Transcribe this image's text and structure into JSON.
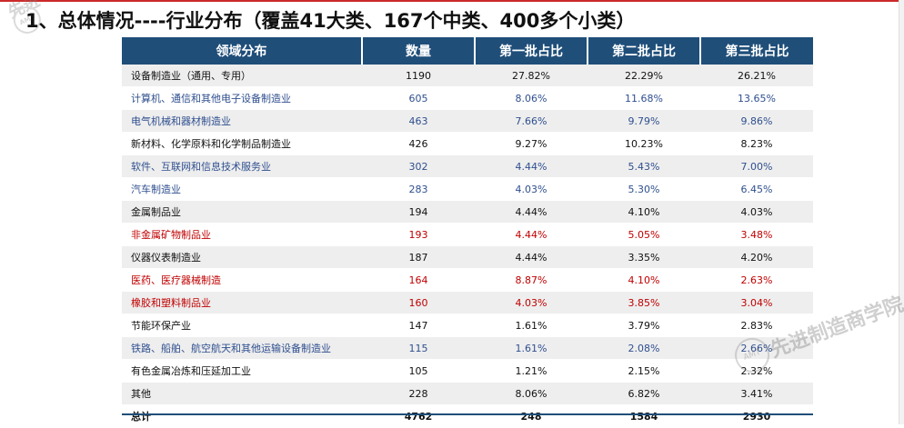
{
  "title": "1、总体情况----行业分布（覆盖41大类、167个中类、400多个小类）",
  "logo": {
    "text": "先进",
    "seal_text": "AMT",
    "color": "#888888"
  },
  "watermark": {
    "text": "先进制造商学院",
    "seal_text": "AMT"
  },
  "colors": {
    "header_bg": "#1f4e79",
    "header_text": "#ffffff",
    "row_shade": "#eeeeee",
    "blue_text": "#2f4f8f",
    "red_text": "#c00000"
  },
  "table": {
    "headers": [
      "领域分布",
      "数量",
      "第一批占比",
      "第二批占比",
      "第三批占比"
    ],
    "rows": [
      {
        "name": "设备制造业（通用、专用）",
        "count": "1190",
        "b1": "27.82%",
        "b2": "22.29%",
        "b3": "26.21%",
        "tone": "black"
      },
      {
        "name": "计算机、通信和其他电子设备制造业",
        "count": "605",
        "b1": "8.06%",
        "b2": "11.68%",
        "b3": "13.65%",
        "tone": "blue"
      },
      {
        "name": "电气机械和器材制造业",
        "count": "463",
        "b1": "7.66%",
        "b2": "9.79%",
        "b3": "9.86%",
        "tone": "blue"
      },
      {
        "name": "新材料、化学原料和化学制品制造业",
        "count": "426",
        "b1": "9.27%",
        "b2": "10.23%",
        "b3": "8.23%",
        "tone": "black"
      },
      {
        "name": "软件、互联网和信息技术服务业",
        "count": "302",
        "b1": "4.44%",
        "b2": "5.43%",
        "b3": "7.00%",
        "tone": "blue"
      },
      {
        "name": "汽车制造业",
        "count": "283",
        "b1": "4.03%",
        "b2": "5.30%",
        "b3": "6.45%",
        "tone": "blue"
      },
      {
        "name": "金属制品业",
        "count": "194",
        "b1": "4.44%",
        "b2": "4.10%",
        "b3": "4.03%",
        "tone": "black"
      },
      {
        "name": "非金属矿物制品业",
        "count": "193",
        "b1": "4.44%",
        "b2": "5.05%",
        "b3": "3.48%",
        "tone": "red"
      },
      {
        "name": "仪器仪表制造业",
        "count": "187",
        "b1": "4.44%",
        "b2": "3.35%",
        "b3": "4.20%",
        "tone": "black"
      },
      {
        "name": "医药、医疗器械制造",
        "count": "164",
        "b1": "8.87%",
        "b2": "4.10%",
        "b3": "2.63%",
        "tone": "red"
      },
      {
        "name": "橡胶和塑料制品业",
        "count": "160",
        "b1": "4.03%",
        "b2": "3.85%",
        "b3": "3.04%",
        "tone": "red"
      },
      {
        "name": "节能环保产业",
        "count": "147",
        "b1": "1.61%",
        "b2": "3.79%",
        "b3": "2.83%",
        "tone": "black"
      },
      {
        "name": "铁路、船舶、航空航天和其他运输设备制造业",
        "count": "115",
        "b1": "1.61%",
        "b2": "2.08%",
        "b3": "2.66%",
        "tone": "blue"
      },
      {
        "name": "有色金属冶炼和压延加工业",
        "count": "105",
        "b1": "1.21%",
        "b2": "2.15%",
        "b3": "2.32%",
        "tone": "black"
      },
      {
        "name": "其他",
        "count": "228",
        "b1": "8.06%",
        "b2": "6.82%",
        "b3": "3.41%",
        "tone": "black"
      },
      {
        "name": "总计",
        "count": "4762",
        "b1": "248",
        "b2": "1584",
        "b3": "2930",
        "tone": "black"
      }
    ]
  }
}
